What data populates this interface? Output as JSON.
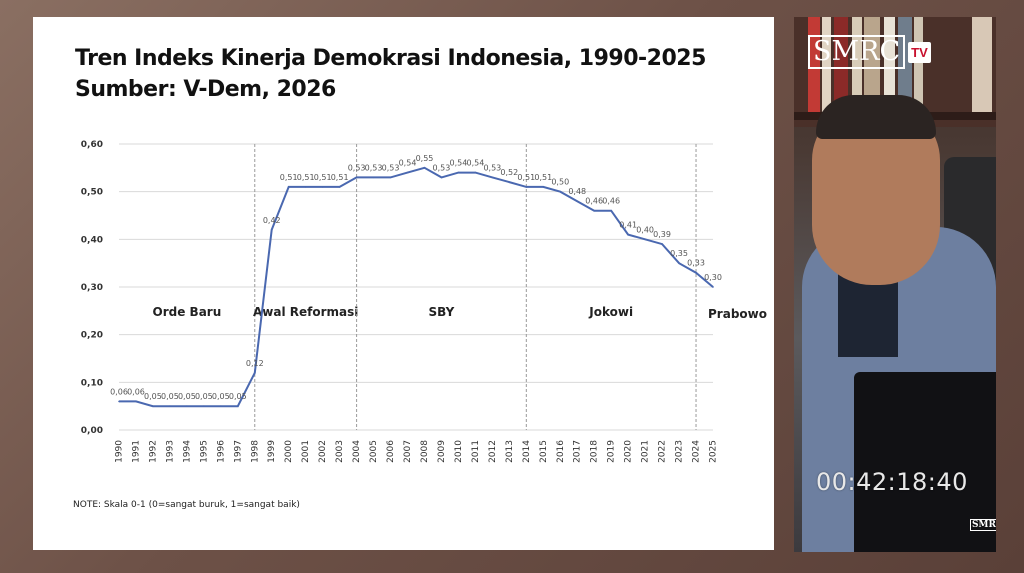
{
  "slide": {
    "title_line1": "Tren Indeks Kinerja Demokrasi Indonesia, 1990-2025",
    "title_line2": "Sumber: V-Dem, 2026",
    "note": "NOTE: Skala 0-1 (0=sangat buruk, 1=sangat baik)"
  },
  "chart_data": {
    "type": "line",
    "title": "Tren Indeks Kinerja Demokrasi Indonesia, 1990-2025",
    "x": [
      "1990",
      "1991",
      "1992",
      "1993",
      "1994",
      "1995",
      "1996",
      "1997",
      "1998",
      "1999",
      "2000",
      "2001",
      "2002",
      "2003",
      "2004",
      "2005",
      "2006",
      "2007",
      "2008",
      "2009",
      "2010",
      "2011",
      "2012",
      "2013",
      "2014",
      "2015",
      "2016",
      "2017",
      "2018",
      "2019",
      "2020",
      "2021",
      "2022",
      "2023",
      "2024",
      "2025"
    ],
    "series": [
      {
        "values": [
          0.06,
          0.06,
          0.05,
          0.05,
          0.05,
          0.05,
          0.05,
          0.05,
          0.12,
          0.42,
          0.51,
          0.51,
          0.51,
          0.51,
          0.53,
          0.53,
          0.53,
          0.54,
          0.55,
          0.53,
          0.54,
          0.54,
          0.53,
          0.52,
          0.51,
          0.51,
          0.5,
          0.48,
          0.46,
          0.46,
          0.41,
          0.4,
          0.39,
          0.35,
          0.33,
          0.3
        ],
        "labels": [
          "0,06",
          "0,06",
          "0,05",
          "0,05",
          "0,05",
          "0,05",
          "0,05",
          "0,05",
          "0,12",
          "0,42",
          "0,51",
          "0,51",
          "0,51",
          "0,51",
          "0,53",
          "0,53",
          "0,53",
          "0,54",
          "0,55",
          "0,53",
          "0,54",
          "0,54",
          "0,53",
          "0,52",
          "0,51",
          "0,51",
          "0,50",
          "0,48",
          "0,46",
          "0,46",
          "0,41",
          "0,40",
          "0,39",
          "0,35",
          "0,33",
          "0,30"
        ],
        "color": "#4a68b0"
      }
    ],
    "ylim": [
      0,
      0.6
    ],
    "yticks": [
      "0,00",
      "0,10",
      "0,20",
      "0,30",
      "0,40",
      "0,50",
      "0,60"
    ],
    "grid": true,
    "periods": [
      {
        "name": "Orde Baru",
        "start": "1990",
        "end": "1998"
      },
      {
        "name": "Awal Reformasi",
        "start": "1998",
        "end": "2004"
      },
      {
        "name": "SBY",
        "start": "2004",
        "end": "2014"
      },
      {
        "name": "Jokowi",
        "start": "2014",
        "end": "2024"
      },
      {
        "name": "Prabowo",
        "start": "2024",
        "end": "2025"
      }
    ]
  },
  "video": {
    "logo_text": "SMRC",
    "logo_badge": "TV",
    "timecode": "00:42:18:40",
    "mini_logo": "SMRC",
    "mini_badge": "TV"
  },
  "colors": {
    "line": "#4a68b0",
    "grid": "#d9d9d9",
    "brand_red": "#c8102e"
  }
}
